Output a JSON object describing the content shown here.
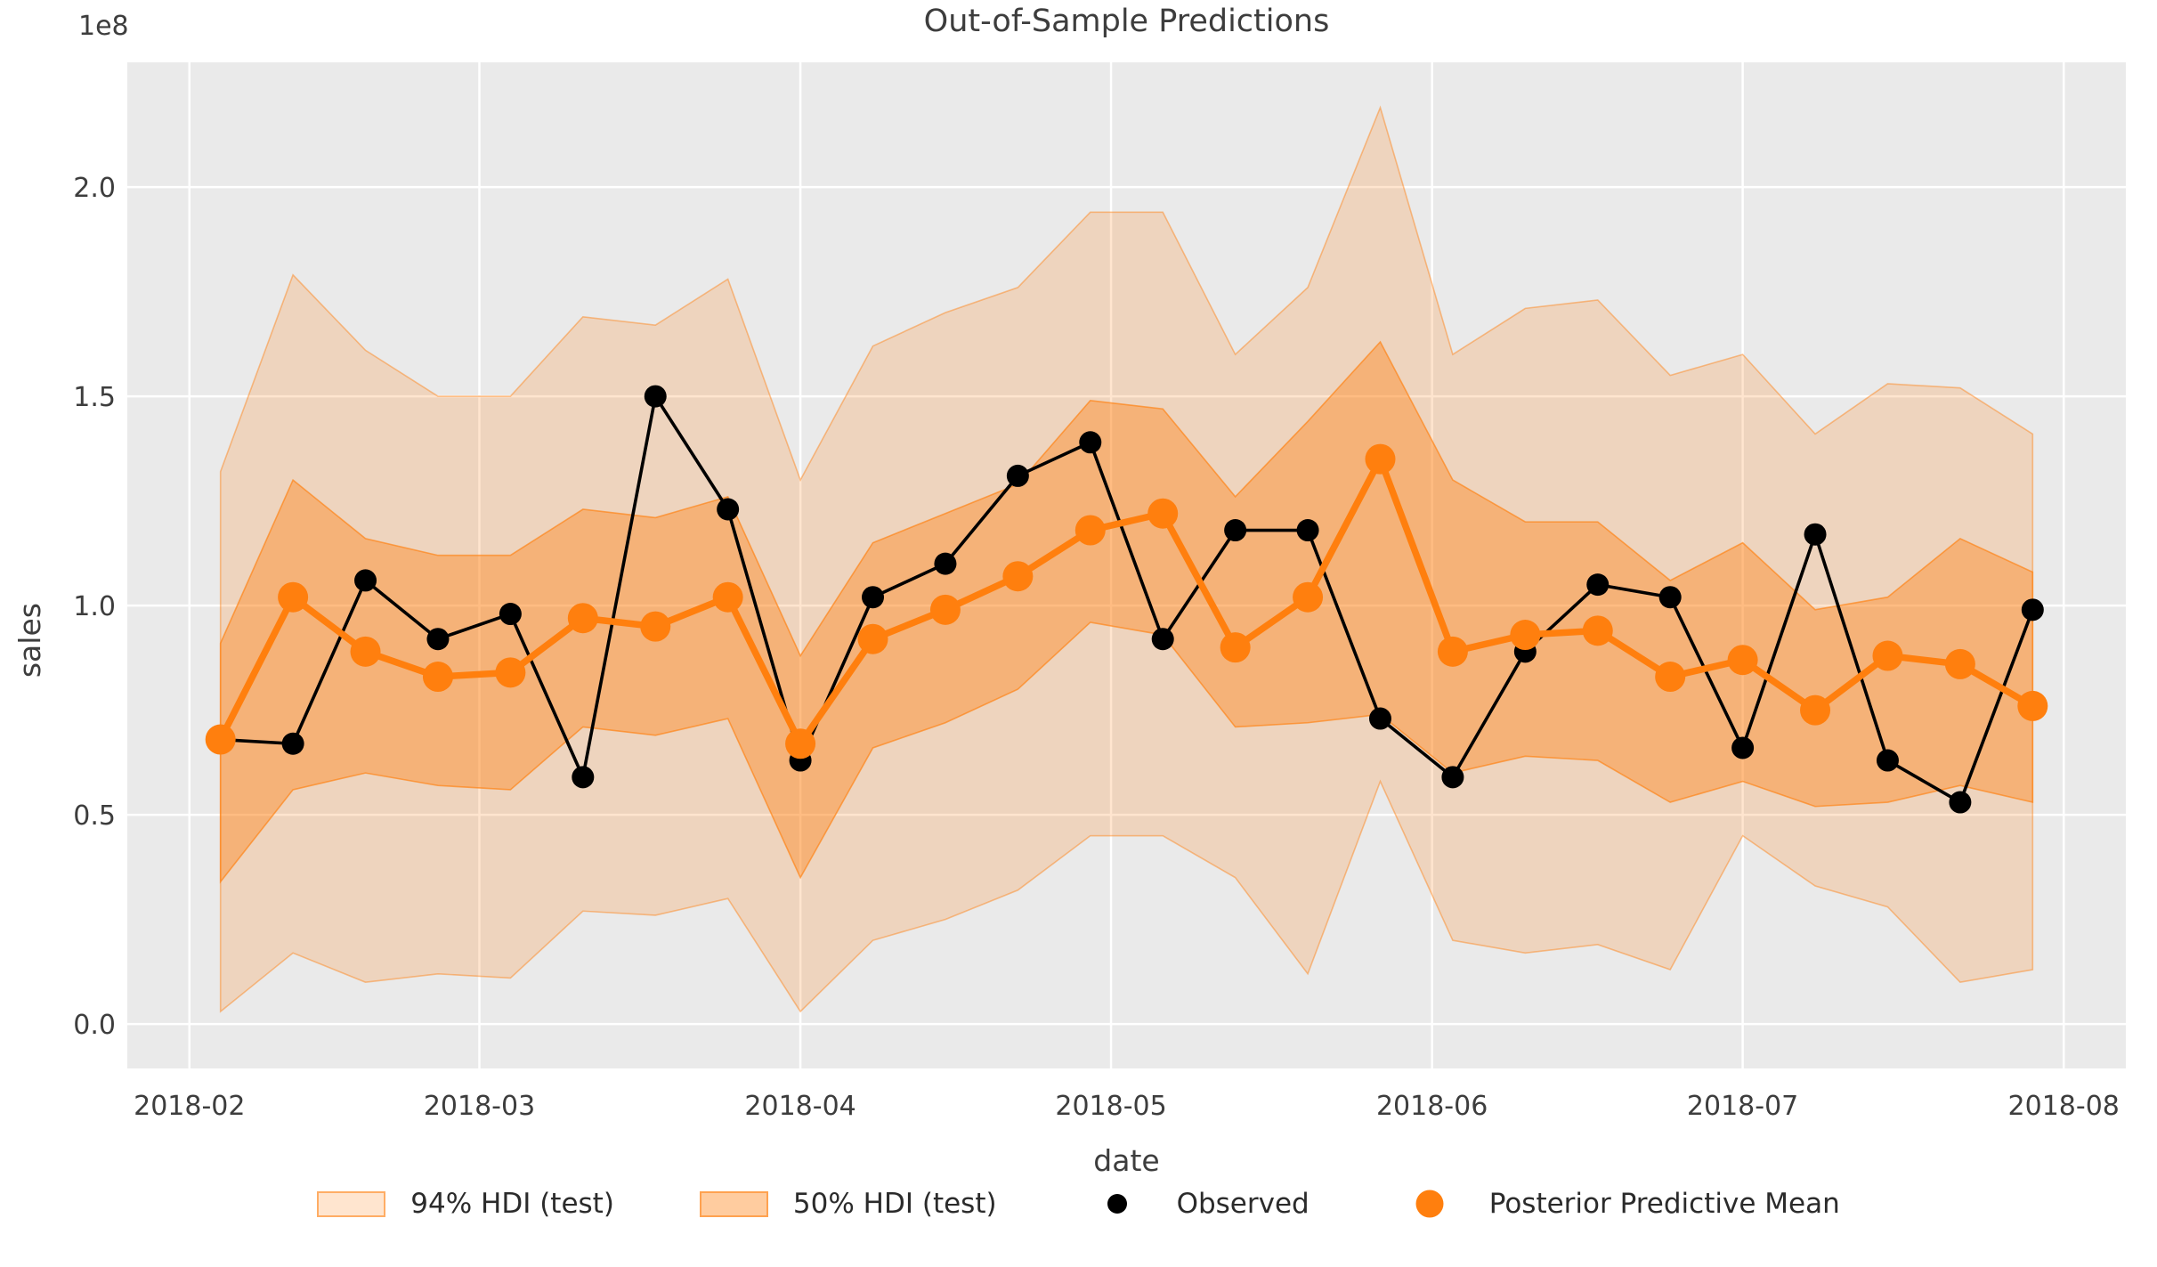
{
  "title": "Out-of-Sample Predictions",
  "offset_label": "1e8",
  "axis": {
    "xlabel": "date",
    "ylabel": "sales"
  },
  "legend": {
    "items": [
      {
        "label": "94% HDI (test)",
        "marker": "patch-light-orange"
      },
      {
        "label": "50% HDI (test)",
        "marker": "patch-medium-orange"
      },
      {
        "label": "Observed",
        "marker": "black-line-dot"
      },
      {
        "label": "Posterior Predictive Mean",
        "marker": "orange-line-dot"
      }
    ]
  },
  "chart_data": {
    "type": "line",
    "title": "Out-of-Sample Predictions",
    "xlabel": "date",
    "ylabel": "sales",
    "y_offset_text": "1e8",
    "y_unit": 100000000.0,
    "grid": true,
    "legend_position": "bottom",
    "background_color": "#eaeaea",
    "gridline_color": "#ffffff",
    "x": [
      "2018-02-04",
      "2018-02-11",
      "2018-02-18",
      "2018-02-25",
      "2018-03-04",
      "2018-03-11",
      "2018-03-18",
      "2018-03-25",
      "2018-04-01",
      "2018-04-08",
      "2018-04-15",
      "2018-04-22",
      "2018-04-29",
      "2018-05-06",
      "2018-05-13",
      "2018-05-20",
      "2018-05-27",
      "2018-06-03",
      "2018-06-10",
      "2018-06-17",
      "2018-06-24",
      "2018-07-01",
      "2018-07-08",
      "2018-07-15",
      "2018-07-22",
      "2018-07-29"
    ],
    "series": [
      {
        "name": "Observed",
        "color": "#000000",
        "values": [
          0.68,
          0.67,
          1.06,
          0.92,
          0.98,
          0.59,
          1.5,
          1.23,
          0.63,
          1.02,
          1.1,
          1.31,
          1.39,
          0.92,
          1.18,
          1.18,
          0.73,
          0.59,
          0.89,
          1.05,
          1.02,
          0.66,
          1.17,
          0.63,
          0.53,
          0.99
        ]
      },
      {
        "name": "Posterior Predictive Mean",
        "color": "#ff7f0e",
        "values": [
          0.68,
          1.02,
          0.89,
          0.83,
          0.84,
          0.97,
          0.95,
          1.02,
          0.67,
          0.92,
          0.99,
          1.07,
          1.18,
          1.22,
          0.9,
          1.02,
          1.35,
          0.89,
          0.93,
          0.94,
          0.83,
          0.87,
          0.75,
          0.88,
          0.86,
          0.76
        ]
      }
    ],
    "bands": [
      {
        "name": "94% HDI (test)",
        "color": "#ff7f0e",
        "opacity": 0.2,
        "hi": [
          1.32,
          1.79,
          1.61,
          1.5,
          1.5,
          1.69,
          1.67,
          1.78,
          1.3,
          1.62,
          1.7,
          1.76,
          1.94,
          1.94,
          1.6,
          1.76,
          2.19,
          1.6,
          1.71,
          1.73,
          1.55,
          1.6,
          1.41,
          1.53,
          1.52,
          1.41
        ],
        "lo": [
          0.03,
          0.17,
          0.1,
          0.12,
          0.11,
          0.27,
          0.26,
          0.3,
          0.03,
          0.2,
          0.25,
          0.32,
          0.45,
          0.45,
          0.35,
          0.12,
          0.58,
          0.2,
          0.17,
          0.19,
          0.13,
          0.45,
          0.33,
          0.28,
          0.1,
          0.13
        ]
      },
      {
        "name": "50% HDI (test)",
        "color": "#ff7f0e",
        "opacity": 0.4,
        "hi": [
          0.91,
          1.3,
          1.16,
          1.12,
          1.12,
          1.23,
          1.21,
          1.26,
          0.88,
          1.15,
          1.22,
          1.29,
          1.49,
          1.47,
          1.26,
          1.44,
          1.63,
          1.3,
          1.2,
          1.2,
          1.06,
          1.15,
          0.99,
          1.02,
          1.16,
          1.08
        ],
        "lo": [
          0.34,
          0.56,
          0.6,
          0.57,
          0.56,
          0.71,
          0.69,
          0.73,
          0.35,
          0.66,
          0.72,
          0.8,
          0.96,
          0.93,
          0.71,
          0.72,
          0.74,
          0.6,
          0.64,
          0.63,
          0.53,
          0.58,
          0.52,
          0.53,
          0.57,
          0.53
        ]
      }
    ],
    "xlim": [
      "2018-01-26",
      "2018-08-07"
    ],
    "ylim": [
      -0.106,
      2.298
    ],
    "yticks": {
      "values": [
        0.0,
        0.5,
        1.0,
        1.5,
        2.0
      ],
      "labels": [
        "0.0",
        "0.5",
        "1.0",
        "1.5",
        "2.0"
      ]
    },
    "xticks": {
      "dates": [
        "2018-02-01",
        "2018-03-01",
        "2018-04-01",
        "2018-05-01",
        "2018-06-01",
        "2018-07-01",
        "2018-08-01"
      ],
      "labels": [
        "2018-02",
        "2018-03",
        "2018-04",
        "2018-05",
        "2018-06",
        "2018-07",
        "2018-08"
      ]
    }
  }
}
